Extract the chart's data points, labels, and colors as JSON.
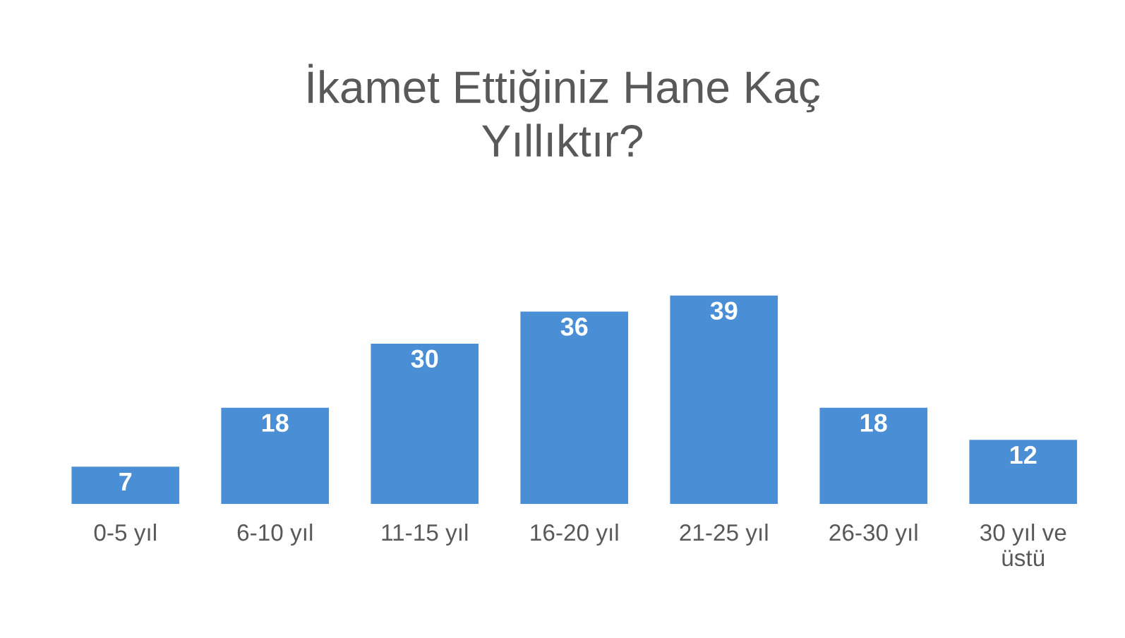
{
  "chart_data": {
    "type": "bar",
    "title": "İkamet Ettiğiniz Hane Kaç\nYıllıktır?",
    "categories": [
      "0-5 yıl",
      "6-10 yıl",
      "11-15 yıl",
      "16-20 yıl",
      "21-25 yıl",
      "26-30 yıl",
      "30 yıl ve\nüstü"
    ],
    "values": [
      7,
      18,
      30,
      36,
      39,
      18,
      12
    ],
    "color": "#4a8fd6",
    "data_labels": true,
    "grid": false,
    "legend": false
  }
}
